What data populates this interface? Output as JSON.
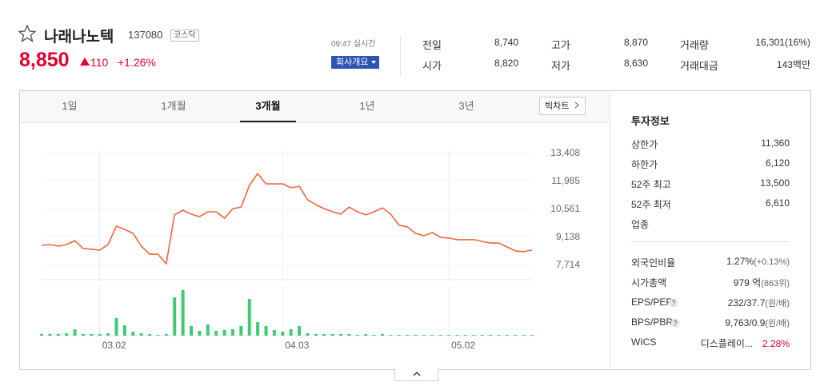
{
  "header": {
    "name": "나래나노텍",
    "code": "137080",
    "market": "코스닥",
    "price": "8,850",
    "change": "110",
    "change_rate": "+1.26%",
    "time": "09:47 실시간",
    "company_button": "회사개요"
  },
  "quote": [
    {
      "label": "전일",
      "value": "8,740"
    },
    {
      "label": "고가",
      "value": "8,870"
    },
    {
      "label": "거래량",
      "value": "16,301(16%)"
    },
    {
      "label": "시가",
      "value": "8,820"
    },
    {
      "label": "저가",
      "value": "8,630"
    },
    {
      "label": "거래대금",
      "value": "143백만"
    }
  ],
  "tabs": [
    "1일",
    "1개월",
    "3개월",
    "1년",
    "3년"
  ],
  "active_tab": 2,
  "big_chart": "빅차트",
  "invest": {
    "title": "투자정보",
    "rows": [
      {
        "label": "상한가",
        "value": "11,360"
      },
      {
        "label": "하한가",
        "value": "6,120"
      },
      {
        "label": "52주 최고",
        "value": "13,500"
      },
      {
        "label": "52주 최저",
        "value": "6,610"
      },
      {
        "label": "업종"
      },
      {
        "label": "외국인비율",
        "value": "1.27%",
        "note": "(+0.13%)"
      },
      {
        "label": "시가총액",
        "value": "979 억",
        "note": "(863위)"
      },
      {
        "label": "EPS/PER",
        "value": "232/37.7",
        "note": "(원/배)"
      },
      {
        "label": "BPS/PBR",
        "value": "9,763/0.9",
        "note": "(원/배)"
      },
      {
        "label": "WICS",
        "value": "디스플레이...",
        "note": "2.28%"
      }
    ]
  },
  "chart_data": {
    "type": "line",
    "categories": [
      null,
      null,
      null,
      null,
      null,
      null,
      null,
      "03.02",
      null,
      null,
      null,
      null,
      null,
      null,
      null,
      null,
      null,
      null,
      null,
      null,
      null,
      null,
      null,
      null,
      null,
      null,
      null,
      null,
      null,
      "04.03",
      null,
      null,
      null,
      null,
      null,
      null,
      null,
      null,
      null,
      null,
      null,
      null,
      null,
      null,
      null,
      null,
      null,
      null,
      null,
      "05.02",
      null,
      null,
      null,
      null,
      null,
      null,
      null,
      null,
      null,
      null
    ],
    "series": [
      {
        "color": "#f5643c",
        "values": [
          8690,
          8730,
          8650,
          8730,
          8930,
          8530,
          8490,
          8450,
          8730,
          9670,
          9500,
          9300,
          8650,
          8240,
          8240,
          7750,
          10240,
          10480,
          10280,
          10150,
          10400,
          10400,
          10070,
          10560,
          10640,
          11740,
          12350,
          11820,
          11820,
          11820,
          11620,
          11700,
          11010,
          10760,
          10560,
          10400,
          10280,
          10640,
          10400,
          10240,
          10400,
          10600,
          10280,
          9710,
          9630,
          9300,
          9180,
          9340,
          9100,
          9060,
          8980,
          8980,
          8980,
          8890,
          8810,
          8810,
          8610,
          8410,
          8370,
          8450
        ]
      },
      {
        "color": "#3fcb72",
        "axis": "y2",
        "values": [
          2,
          2,
          2,
          3,
          8,
          2,
          2,
          2,
          3,
          22,
          13,
          5,
          3,
          2,
          1,
          2,
          48,
          57,
          12,
          6,
          14,
          6,
          7,
          8,
          12,
          46,
          17,
          12,
          7,
          5,
          8,
          12,
          3,
          2,
          2,
          2,
          2,
          2,
          1,
          2,
          1,
          2,
          1,
          1,
          1,
          1,
          1,
          1,
          1,
          1,
          1,
          1,
          1,
          1,
          1,
          1,
          1,
          1,
          1,
          1
        ]
      }
    ],
    "ylim": [
      6940,
      14470
    ],
    "yticks": [
      {
        "value": 13408,
        "label": "13,408"
      },
      {
        "value": 11985,
        "label": "11,985"
      },
      {
        "value": 10561,
        "label": "10,561"
      },
      {
        "value": 9138,
        "label": "9,138"
      },
      {
        "value": 7714,
        "label": "7,714"
      }
    ],
    "y2lim": [
      0,
      60
    ],
    "grid": true
  }
}
